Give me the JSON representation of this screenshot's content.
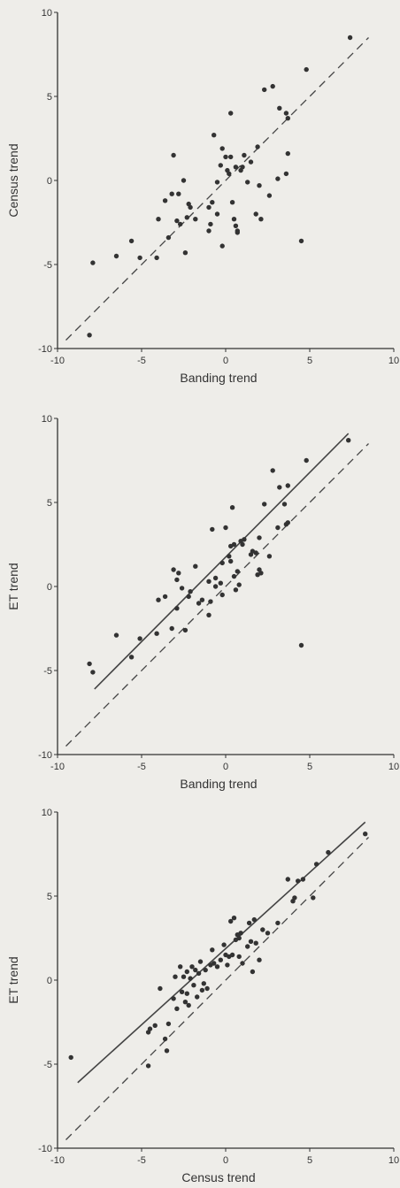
{
  "chart_data": [
    {
      "type": "scatter",
      "xlabel": "Banding trend",
      "ylabel": "Census trend",
      "xlim": [
        -10,
        10
      ],
      "ylim": [
        -10,
        10
      ],
      "xticks": [
        "-10",
        "-5",
        "0",
        "5",
        "10"
      ],
      "yticks": [
        "10",
        "5",
        "0",
        "-5",
        "-10"
      ],
      "reference_lines": [
        {
          "kind": "identity",
          "style": "dashed",
          "from": [
            -9.5,
            -9.5
          ],
          "to": [
            8.5,
            8.5
          ]
        }
      ],
      "points": [
        [
          -8.1,
          -9.2
        ],
        [
          -7.9,
          -4.9
        ],
        [
          -6.5,
          -4.5
        ],
        [
          -5.6,
          -3.6
        ],
        [
          -5.1,
          -4.6
        ],
        [
          -4.1,
          -4.6
        ],
        [
          -4.0,
          -2.3
        ],
        [
          -3.6,
          -1.2
        ],
        [
          -3.4,
          -3.4
        ],
        [
          -3.2,
          -0.8
        ],
        [
          -3.1,
          1.5
        ],
        [
          -2.9,
          -2.4
        ],
        [
          -2.8,
          -0.8
        ],
        [
          -2.7,
          -2.6
        ],
        [
          -2.5,
          0.0
        ],
        [
          -2.4,
          -4.3
        ],
        [
          -2.3,
          -2.2
        ],
        [
          -2.2,
          -1.4
        ],
        [
          -2.1,
          -1.6
        ],
        [
          -1.8,
          -2.3
        ],
        [
          -1.0,
          -1.6
        ],
        [
          -1.0,
          -3.0
        ],
        [
          -0.9,
          -2.6
        ],
        [
          -0.8,
          -1.3
        ],
        [
          -0.7,
          2.7
        ],
        [
          -0.5,
          -2.0
        ],
        [
          -0.5,
          -0.1
        ],
        [
          -0.3,
          0.9
        ],
        [
          -0.2,
          -3.9
        ],
        [
          -0.2,
          1.9
        ],
        [
          0.0,
          1.4
        ],
        [
          0.1,
          0.6
        ],
        [
          0.2,
          0.4
        ],
        [
          0.3,
          4.0
        ],
        [
          0.3,
          1.4
        ],
        [
          0.4,
          -1.3
        ],
        [
          0.5,
          -2.3
        ],
        [
          0.6,
          0.8
        ],
        [
          0.6,
          -2.7
        ],
        [
          0.7,
          -3.0
        ],
        [
          0.7,
          -3.1
        ],
        [
          0.9,
          0.6
        ],
        [
          1.0,
          0.8
        ],
        [
          1.1,
          1.5
        ],
        [
          1.3,
          -0.1
        ],
        [
          1.5,
          1.1
        ],
        [
          1.8,
          -2.0
        ],
        [
          1.9,
          2.0
        ],
        [
          2.0,
          -0.3
        ],
        [
          2.1,
          -2.3
        ],
        [
          2.3,
          5.4
        ],
        [
          2.6,
          -0.9
        ],
        [
          2.8,
          5.6
        ],
        [
          3.1,
          0.1
        ],
        [
          3.2,
          4.3
        ],
        [
          3.6,
          4.0
        ],
        [
          3.6,
          0.4
        ],
        [
          3.7,
          1.6
        ],
        [
          3.7,
          3.7
        ],
        [
          4.5,
          -3.6
        ],
        [
          4.8,
          6.6
        ],
        [
          7.4,
          8.5
        ]
      ]
    },
    {
      "type": "scatter",
      "xlabel": "Banding trend",
      "ylabel": "ET trend",
      "xlim": [
        -10,
        10
      ],
      "ylim": [
        -10,
        10
      ],
      "xticks": [
        "-10",
        "-5",
        "0",
        "5",
        "10"
      ],
      "yticks": [
        "10",
        "5",
        "0",
        "-5",
        "-10"
      ],
      "reference_lines": [
        {
          "kind": "identity",
          "style": "dashed",
          "from": [
            -9.5,
            -9.5
          ],
          "to": [
            8.5,
            8.5
          ]
        },
        {
          "kind": "fit",
          "style": "solid",
          "from": [
            -7.8,
            -6.1
          ],
          "to": [
            7.3,
            9.1
          ]
        }
      ],
      "points": [
        [
          -8.1,
          -4.6
        ],
        [
          -7.9,
          -5.1
        ],
        [
          -6.5,
          -2.9
        ],
        [
          -5.6,
          -4.2
        ],
        [
          -5.1,
          -3.1
        ],
        [
          -4.1,
          -2.8
        ],
        [
          -4.0,
          -0.8
        ],
        [
          -3.6,
          -0.6
        ],
        [
          -3.2,
          -2.5
        ],
        [
          -3.1,
          1.0
        ],
        [
          -2.9,
          -1.3
        ],
        [
          -2.9,
          0.4
        ],
        [
          -2.8,
          0.8
        ],
        [
          -2.6,
          -0.1
        ],
        [
          -2.4,
          -2.6
        ],
        [
          -2.2,
          -0.6
        ],
        [
          -2.1,
          -0.3
        ],
        [
          -1.8,
          1.2
        ],
        [
          -1.6,
          -1.0
        ],
        [
          -1.4,
          -0.8
        ],
        [
          -1.0,
          0.3
        ],
        [
          -1.0,
          -1.7
        ],
        [
          -0.9,
          -0.9
        ],
        [
          -0.8,
          3.4
        ],
        [
          -0.6,
          0.5
        ],
        [
          -0.6,
          0.0
        ],
        [
          -0.3,
          0.2
        ],
        [
          -0.2,
          1.4
        ],
        [
          -0.2,
          -0.5
        ],
        [
          0.0,
          3.5
        ],
        [
          0.2,
          1.8
        ],
        [
          0.3,
          2.4
        ],
        [
          0.3,
          1.5
        ],
        [
          0.4,
          4.7
        ],
        [
          0.5,
          2.5
        ],
        [
          0.5,
          0.6
        ],
        [
          0.6,
          -0.2
        ],
        [
          0.7,
          0.9
        ],
        [
          0.8,
          0.1
        ],
        [
          0.9,
          2.7
        ],
        [
          1.0,
          2.5
        ],
        [
          1.1,
          2.8
        ],
        [
          1.5,
          1.9
        ],
        [
          1.6,
          2.1
        ],
        [
          1.8,
          2.0
        ],
        [
          1.9,
          0.7
        ],
        [
          2.0,
          2.9
        ],
        [
          2.0,
          1.0
        ],
        [
          2.1,
          0.8
        ],
        [
          2.3,
          4.9
        ],
        [
          2.6,
          1.8
        ],
        [
          2.8,
          6.9
        ],
        [
          3.1,
          3.5
        ],
        [
          3.2,
          5.9
        ],
        [
          3.5,
          4.9
        ],
        [
          3.6,
          3.7
        ],
        [
          3.7,
          3.8
        ],
        [
          3.7,
          6.0
        ],
        [
          4.5,
          -3.5
        ],
        [
          4.8,
          7.5
        ],
        [
          7.3,
          8.7
        ]
      ]
    },
    {
      "type": "scatter",
      "xlabel": "Census trend",
      "ylabel": "ET trend",
      "xlim": [
        -10,
        10
      ],
      "ylim": [
        -10,
        10
      ],
      "xticks": [
        "-10",
        "-5",
        "0",
        "5",
        "10"
      ],
      "yticks": [
        "10",
        "5",
        "0",
        "-5",
        "-10"
      ],
      "reference_lines": [
        {
          "kind": "identity",
          "style": "dashed",
          "from": [
            -9.5,
            -9.5
          ],
          "to": [
            8.5,
            8.5
          ]
        },
        {
          "kind": "fit",
          "style": "solid",
          "from": [
            -8.8,
            -6.1
          ],
          "to": [
            8.3,
            9.4
          ]
        }
      ],
      "points": [
        [
          -9.2,
          -4.6
        ],
        [
          -4.6,
          -5.1
        ],
        [
          -4.6,
          -3.1
        ],
        [
          -4.5,
          -2.9
        ],
        [
          -4.2,
          -2.7
        ],
        [
          -3.9,
          -0.5
        ],
        [
          -3.6,
          -3.5
        ],
        [
          -3.5,
          -4.2
        ],
        [
          -3.4,
          -2.6
        ],
        [
          -3.1,
          -1.1
        ],
        [
          -3.0,
          0.2
        ],
        [
          -2.9,
          -1.7
        ],
        [
          -2.7,
          0.8
        ],
        [
          -2.6,
          -0.7
        ],
        [
          -2.5,
          0.2
        ],
        [
          -2.4,
          -1.3
        ],
        [
          -2.3,
          -0.8
        ],
        [
          -2.3,
          0.5
        ],
        [
          -2.2,
          -1.5
        ],
        [
          -2.1,
          0.1
        ],
        [
          -2.0,
          0.8
        ],
        [
          -1.9,
          -0.3
        ],
        [
          -1.8,
          0.6
        ],
        [
          -1.7,
          -1.0
        ],
        [
          -1.6,
          0.4
        ],
        [
          -1.5,
          1.1
        ],
        [
          -1.4,
          -0.6
        ],
        [
          -1.3,
          -0.2
        ],
        [
          -1.2,
          0.6
        ],
        [
          -1.1,
          -0.5
        ],
        [
          -0.9,
          0.9
        ],
        [
          -0.8,
          1.8
        ],
        [
          -0.7,
          1.0
        ],
        [
          -0.5,
          0.8
        ],
        [
          -0.3,
          1.2
        ],
        [
          -0.1,
          2.1
        ],
        [
          0.0,
          1.5
        ],
        [
          0.1,
          0.9
        ],
        [
          0.2,
          1.4
        ],
        [
          0.3,
          3.5
        ],
        [
          0.4,
          1.5
        ],
        [
          0.5,
          3.7
        ],
        [
          0.6,
          2.4
        ],
        [
          0.7,
          2.7
        ],
        [
          0.8,
          1.4
        ],
        [
          0.8,
          2.5
        ],
        [
          0.9,
          2.8
        ],
        [
          1.0,
          1.0
        ],
        [
          1.3,
          2.0
        ],
        [
          1.4,
          3.4
        ],
        [
          1.5,
          2.3
        ],
        [
          1.6,
          0.5
        ],
        [
          1.7,
          3.6
        ],
        [
          1.8,
          2.2
        ],
        [
          2.0,
          1.2
        ],
        [
          2.2,
          3.0
        ],
        [
          2.5,
          2.8
        ],
        [
          3.1,
          3.4
        ],
        [
          3.7,
          6.0
        ],
        [
          4.0,
          4.7
        ],
        [
          4.1,
          4.9
        ],
        [
          4.3,
          5.9
        ],
        [
          4.6,
          6.0
        ],
        [
          5.2,
          4.9
        ],
        [
          5.4,
          6.9
        ],
        [
          6.1,
          7.6
        ],
        [
          8.3,
          8.7
        ]
      ]
    }
  ]
}
